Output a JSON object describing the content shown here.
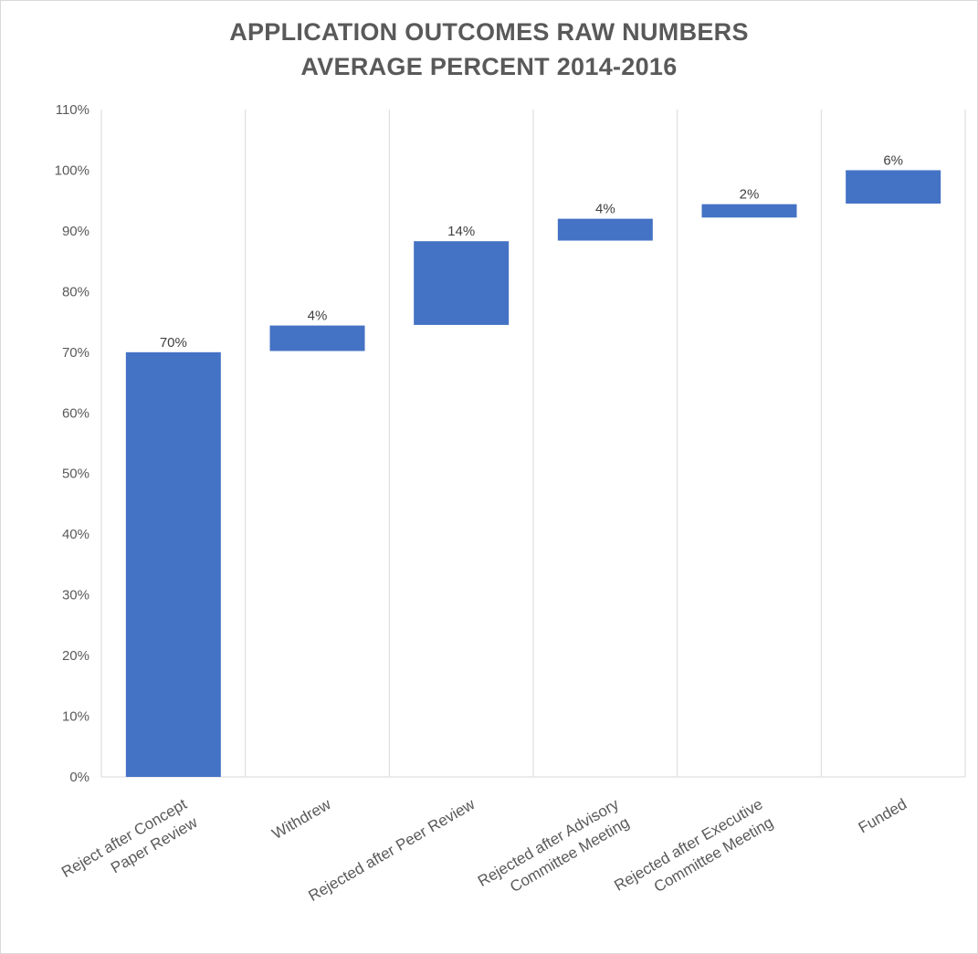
{
  "chart_data": {
    "type": "bar",
    "subtype": "waterfall",
    "title": [
      "APPLICATION OUTCOMES RAW NUMBERS",
      "AVERAGE PERCENT 2014-2016"
    ],
    "categories": [
      [
        "Reject after Concept",
        "Paper Review"
      ],
      [
        "Withdrew"
      ],
      [
        "Rejected after Peer Review"
      ],
      [
        "Rejected after Advisory",
        "Committee Meeting"
      ],
      [
        "Rejected after Executive",
        "Committee Meeting"
      ],
      [
        "Funded"
      ]
    ],
    "values": [
      70,
      4,
      14,
      4,
      2,
      6
    ],
    "bar_ranges": [
      [
        0,
        70
      ],
      [
        70.2,
        74.4
      ],
      [
        74.5,
        88.3
      ],
      [
        88.4,
        92.0
      ],
      [
        92.2,
        94.4
      ],
      [
        94.5,
        100
      ]
    ],
    "data_labels": [
      "70%",
      "4%",
      "14%",
      "4%",
      "2%",
      "6%"
    ],
    "ylim": [
      0,
      110
    ],
    "yticks": [
      0,
      10,
      20,
      30,
      40,
      50,
      60,
      70,
      80,
      90,
      100,
      110
    ],
    "ytick_labels": [
      "0%",
      "10%",
      "20%",
      "30%",
      "40%",
      "50%",
      "60%",
      "70%",
      "80%",
      "90%",
      "100%",
      "110%"
    ],
    "xlabel": "",
    "ylabel": "",
    "grid": "vertical",
    "legend": "none",
    "bar_color": "#4472c4",
    "grid_color": "#d9d9d9",
    "text_color": "#595959"
  }
}
